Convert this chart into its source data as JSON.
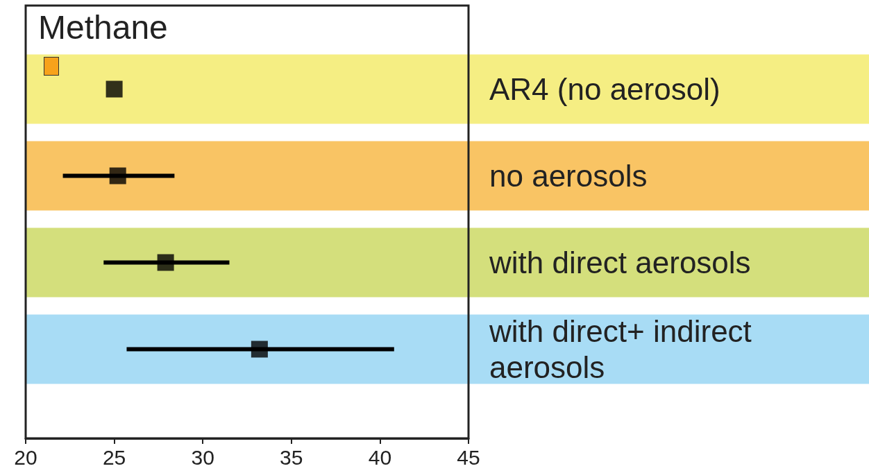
{
  "chart_data": {
    "type": "scatter",
    "orientation": "horizontal",
    "title": "Methane",
    "marker": "square",
    "categories": [
      "AR4 (no aerosol)",
      "no aerosols",
      "with direct aerosols",
      "with direct+ indirect aerosols"
    ],
    "series": [
      {
        "color": "#000000",
        "values": [
          25,
          25.2,
          27.9,
          33.2
        ],
        "errors": [
          null,
          [
            22.1,
            28.4
          ],
          [
            24.4,
            31.5
          ],
          [
            25.7,
            40.8
          ]
        ]
      }
    ],
    "xlim": [
      20,
      45
    ],
    "xticks": [
      20,
      25,
      30,
      35,
      40,
      45
    ],
    "bands": [
      {
        "axis": "y",
        "from": "AR4 (no aerosol)",
        "to": "AR4 (no aerosol)",
        "color": "#f5ee83"
      },
      {
        "axis": "y",
        "from": "no aerosols",
        "to": "no aerosols",
        "color": "#f9c464"
      },
      {
        "axis": "y",
        "from": "with direct aerosols",
        "to": "with direct aerosols",
        "color": "#d4df7c"
      },
      {
        "axis": "y",
        "from": "with direct+ indirect aerosols",
        "to": "with direct+ indirect aerosols",
        "color": "#a8dcf5"
      }
    ]
  }
}
